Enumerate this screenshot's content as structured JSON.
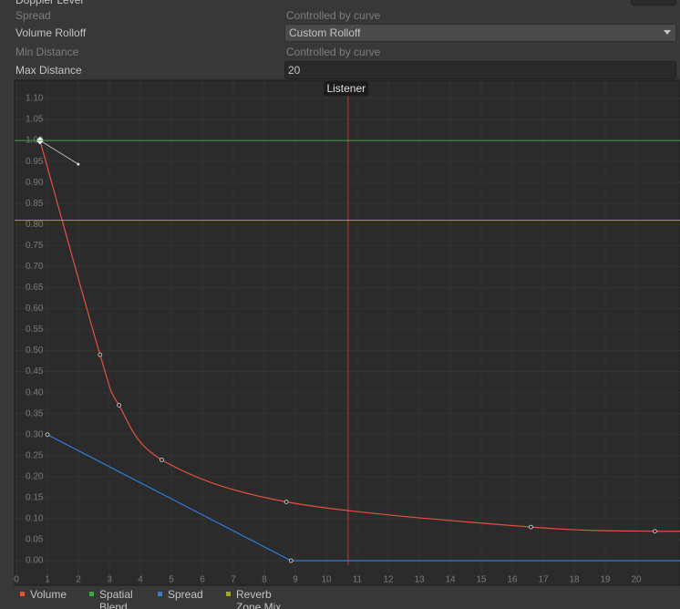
{
  "inspector": {
    "rows": [
      {
        "label": "Doppler Level"
      },
      {
        "label": "Spread",
        "value": "Controlled by curve"
      },
      {
        "label": "Volume Rolloff",
        "value": "Custom Rolloff"
      },
      {
        "label": "Min Distance",
        "value": "Controlled by curve"
      },
      {
        "label": "Max Distance",
        "value": "20"
      }
    ]
  },
  "chart_data": {
    "type": "line",
    "listener": {
      "label": "Listener",
      "x": 10.7
    },
    "xlim": [
      0,
      20
    ],
    "ylim": [
      0,
      1.1
    ],
    "xticks": [
      0,
      1,
      2,
      3,
      4,
      5,
      6,
      7,
      8,
      9,
      10,
      11,
      12,
      13,
      14,
      15,
      16,
      17,
      18,
      19,
      20
    ],
    "yticks": [
      {
        "value": 0,
        "label": "0.00"
      },
      {
        "value": 0.05,
        "label": "0.05"
      },
      {
        "value": 0.1,
        "label": "0.10"
      },
      {
        "value": 0.15,
        "label": "0.15"
      },
      {
        "value": 0.2,
        "label": "0.20"
      },
      {
        "value": 0.25,
        "label": "0.25"
      },
      {
        "value": 0.3,
        "label": "0.30"
      },
      {
        "value": 0.35,
        "label": "0.35"
      },
      {
        "value": 0.4,
        "label": "0.40"
      },
      {
        "value": 0.45,
        "label": "0.45"
      },
      {
        "value": 0.5,
        "label": "0.50"
      },
      {
        "value": 0.55,
        "label": "0.55"
      },
      {
        "value": 0.6,
        "label": "0.60"
      },
      {
        "value": 0.65,
        "label": "0.65"
      },
      {
        "value": 0.7,
        "label": "0.70"
      },
      {
        "value": 0.75,
        "label": "0.75"
      },
      {
        "value": 0.8,
        "label": "0.80"
      },
      {
        "value": 0.85,
        "label": "0.85"
      },
      {
        "value": 0.9,
        "label": "0.90"
      },
      {
        "value": 0.95,
        "label": "0.95"
      },
      {
        "value": 1,
        "label": "1.00"
      },
      {
        "value": 1.05,
        "label": "1.05"
      },
      {
        "value": 1.1,
        "label": "1.10"
      }
    ],
    "grid": true,
    "series": [
      {
        "name": "Volume",
        "color": "#e0533f",
        "x": [
          0.76,
          2.7,
          3.31,
          4.69,
          8.71,
          16.6,
          20.6
        ],
        "values": [
          1,
          0.49,
          0.37,
          0.24,
          0.14,
          0.08,
          0.07
        ]
      },
      {
        "name": "Spatial Blend",
        "color": "#3fa63f",
        "x": [
          0
        ],
        "values": [
          1
        ]
      },
      {
        "name": "Spread",
        "color": "#2f7ee0",
        "x": [
          1,
          8.86
        ],
        "values": [
          0.3,
          0
        ]
      },
      {
        "name": "Reverb Zone Mix",
        "color": "#a8a234",
        "x": [
          0
        ],
        "values": [
          0.81
        ]
      }
    ]
  }
}
